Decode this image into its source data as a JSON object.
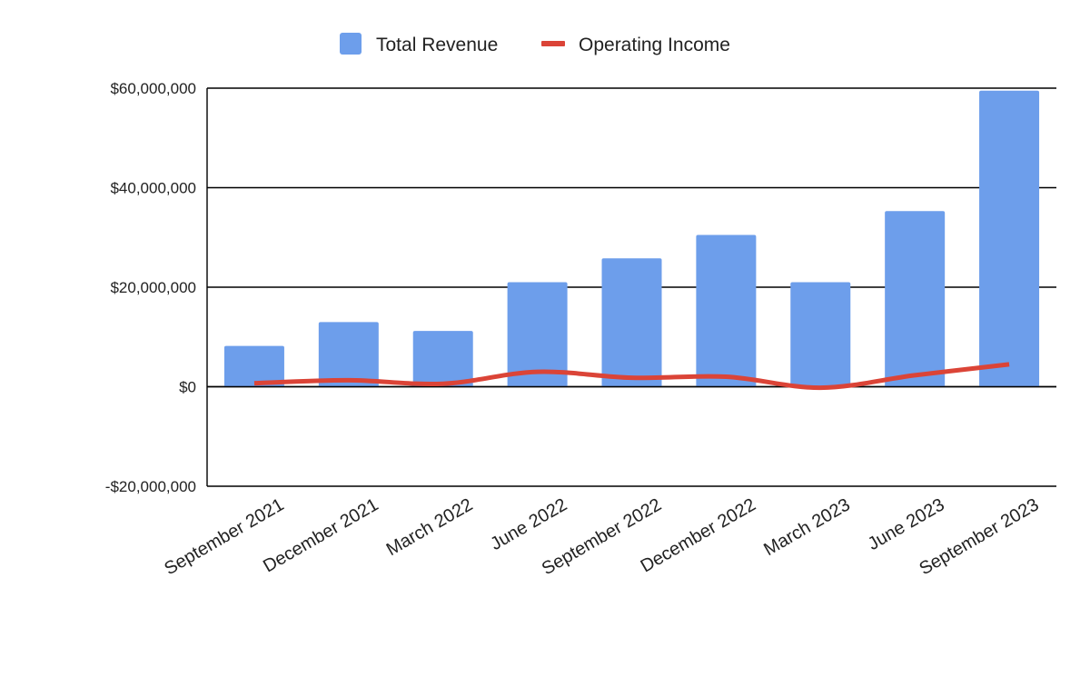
{
  "chart_data": {
    "type": "bar",
    "categories": [
      "September 2021",
      "December 2021",
      "March 2022",
      "June 2022",
      "September 2022",
      "December 2022",
      "March 2023",
      "June 2023",
      "September 2023"
    ],
    "series": [
      {
        "name": "Total Revenue",
        "kind": "bar",
        "color": "#6d9eeb",
        "values": [
          8200000,
          13000000,
          11200000,
          21000000,
          25800000,
          30500000,
          21000000,
          35300000,
          59500000
        ]
      },
      {
        "name": "Operating Income",
        "kind": "line",
        "color": "#db4437",
        "values": [
          700000,
          1300000,
          600000,
          3000000,
          1800000,
          2000000,
          -200000,
          2300000,
          4500000
        ]
      }
    ],
    "ylim": [
      -20000000,
      60000000
    ],
    "yticks": [
      -20000000,
      0,
      20000000,
      40000000,
      60000000
    ],
    "ytick_labels": [
      "-$20,000,000",
      "$0",
      "$20,000,000",
      "$40,000,000",
      "$60,000,000"
    ],
    "grid": true,
    "legend_position": "top-center",
    "title": "",
    "xlabel": "",
    "ylabel": ""
  }
}
